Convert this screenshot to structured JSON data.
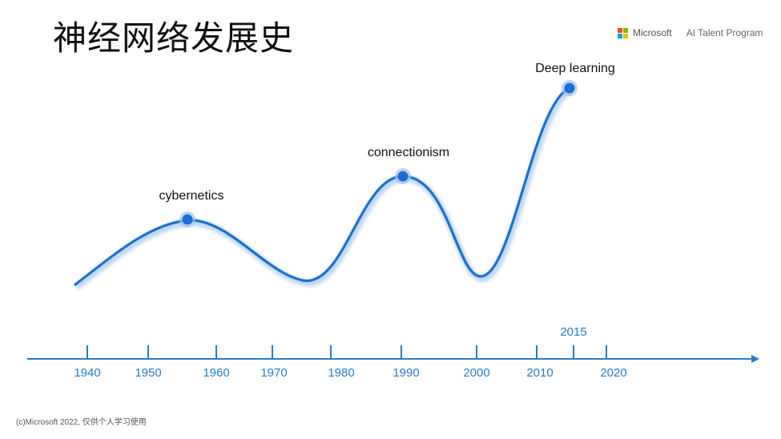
{
  "title": "神经网络发展史",
  "brand": {
    "company": "Microsoft",
    "program": "AI Talent Program",
    "logo_colors": [
      "#f25022",
      "#7fba00",
      "#00a4ef",
      "#ffb900"
    ]
  },
  "footer": "(c)Microsoft 2022, 仅供个人学习使用",
  "timeline": {
    "axis_years": [
      "1940",
      "1950",
      "1960",
      "1970",
      "1980",
      "1990",
      "2000",
      "2010",
      "2020"
    ],
    "highlight_year": "2015"
  },
  "eras": [
    {
      "label": "cybernetics"
    },
    {
      "label": "connectionism"
    },
    {
      "label": "Deep learning"
    }
  ],
  "colors": {
    "curve": "#1e6fd0",
    "glow": "#bcd8f5",
    "axis": "#2a7cc7",
    "dot": "#1e6fd0"
  }
}
